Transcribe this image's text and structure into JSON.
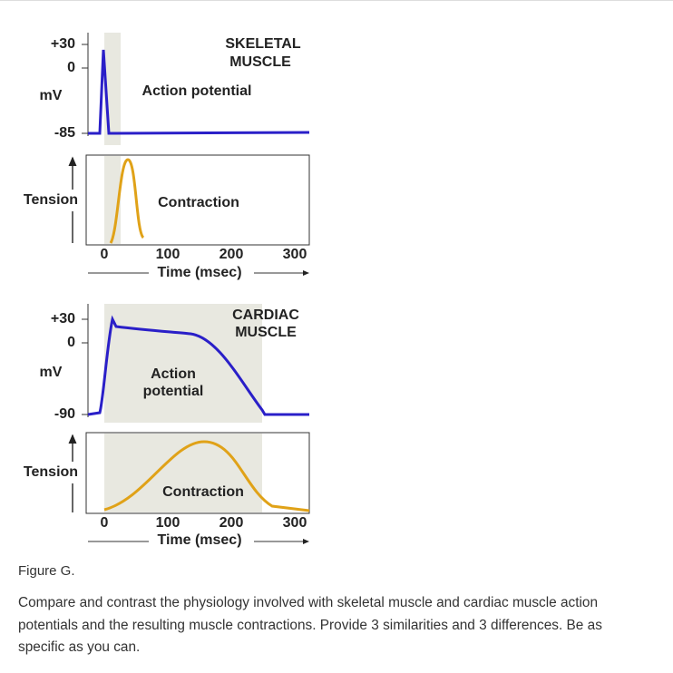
{
  "figure": {
    "skeletal": {
      "title": [
        "SKELETAL",
        "MUSCLE"
      ],
      "mv_ticks": [
        "+30",
        "0",
        "-85"
      ],
      "mv_label": "mV",
      "ap_label": [
        "Action potential"
      ],
      "tension_label": "Tension",
      "contraction_label": "Contraction",
      "time_ticks": [
        "0",
        "100",
        "200",
        "300"
      ],
      "time_label": "Time (msec)"
    },
    "cardiac": {
      "title": [
        "CARDIAC",
        "MUSCLE"
      ],
      "mv_ticks": [
        "+30",
        "0",
        "-90"
      ],
      "mv_label": "mV",
      "ap_label": [
        "Action",
        "potential"
      ],
      "tension_label": "Tension",
      "contraction_label": "Contraction",
      "time_ticks": [
        "0",
        "100",
        "200",
        "300"
      ],
      "time_label": "Time (msec)"
    }
  },
  "caption": "Figure G.",
  "question": "Compare and contrast the physiology involved with skeletal muscle and cardiac muscle action potentials and the resulting muscle contractions.  Provide 3 similarities and 3 differences. Be as specific as you can."
}
